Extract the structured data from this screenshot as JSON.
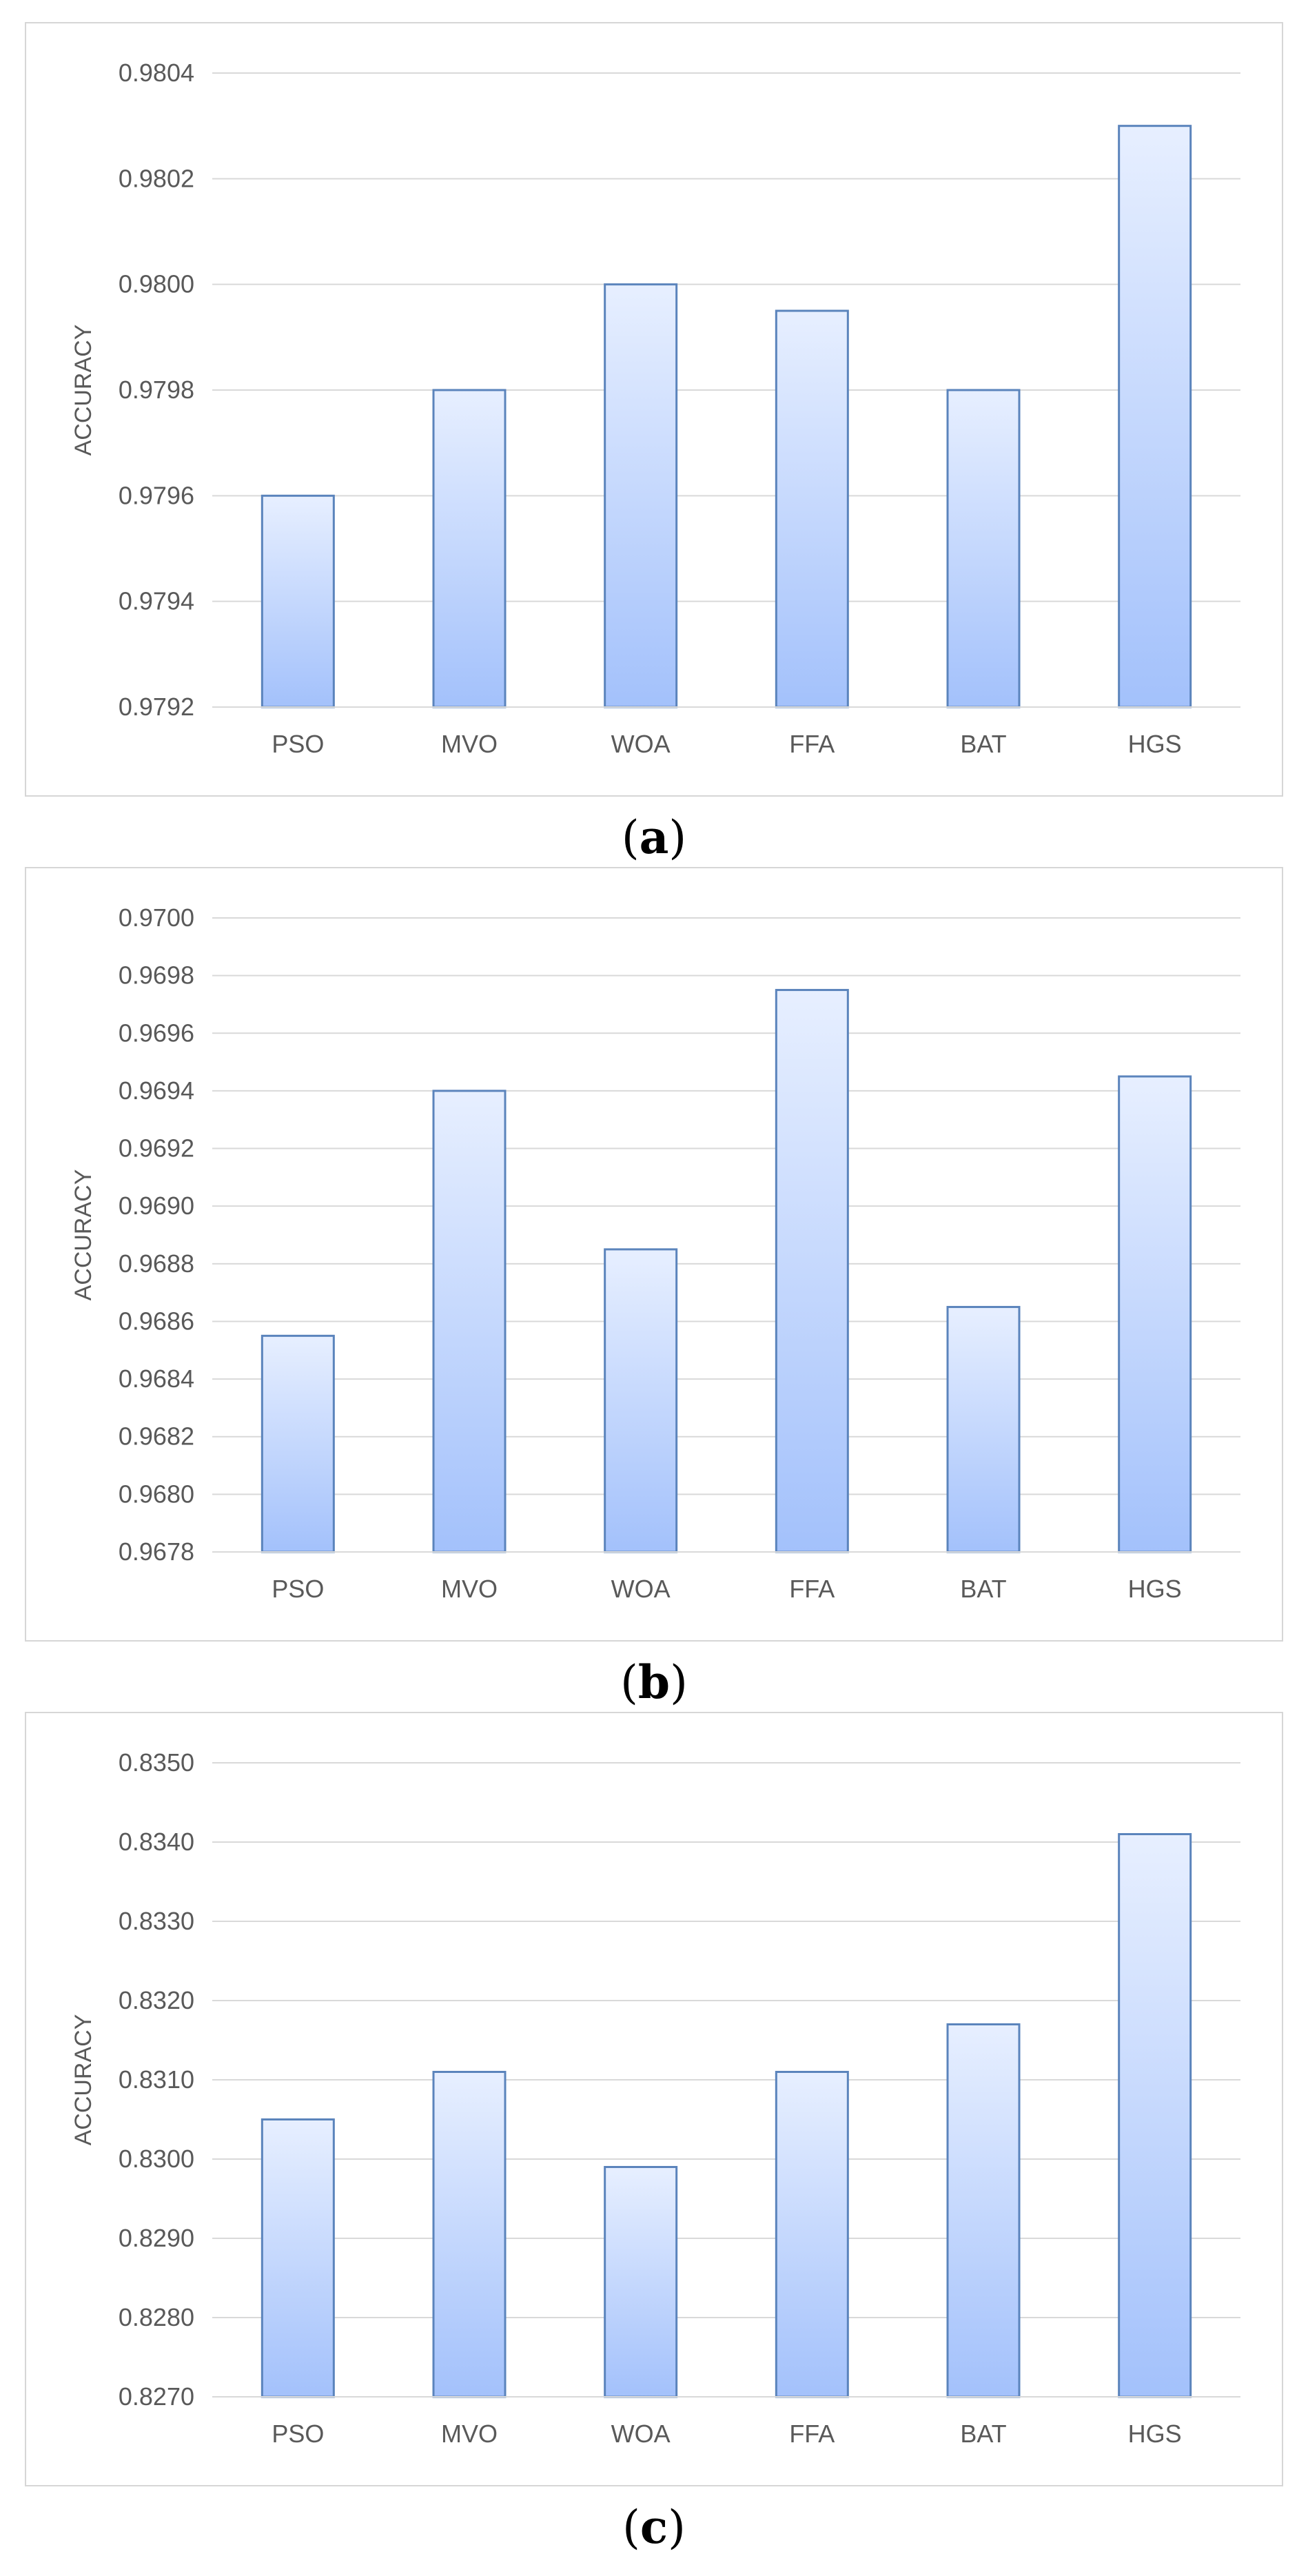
{
  "colors": {
    "bar_top": "#e7efff",
    "bar_bottom": "#a3c1fb",
    "bar_outline": "#5b84bc",
    "grid": "#d9d9d9",
    "tick_text": "#595959",
    "frame": "#d6d6d6"
  },
  "chart_data": [
    {
      "type": "bar",
      "caption_letter": "a",
      "categories": [
        "PSO",
        "MVO",
        "WOA",
        "FFA",
        "BAT",
        "HGS"
      ],
      "values": [
        0.9796,
        0.9798,
        0.98,
        0.97995,
        0.9798,
        0.9803
      ],
      "ylabel": "ACCURACY",
      "xlabel": "",
      "ylim": [
        0.9792,
        0.9804
      ],
      "yticks": [
        "0.9792",
        "0.9794",
        "0.9796",
        "0.9798",
        "0.9800",
        "0.9802",
        "0.9804"
      ],
      "grid": true
    },
    {
      "type": "bar",
      "caption_letter": "b",
      "categories": [
        "PSO",
        "MVO",
        "WOA",
        "FFA",
        "BAT",
        "HGS"
      ],
      "values": [
        0.96855,
        0.9694,
        0.96885,
        0.96975,
        0.96865,
        0.96945
      ],
      "ylabel": "ACCURACY",
      "xlabel": "",
      "ylim": [
        0.9678,
        0.97
      ],
      "yticks": [
        "0.9678",
        "0.9680",
        "0.9682",
        "0.9684",
        "0.9686",
        "0.9688",
        "0.9690",
        "0.9692",
        "0.9694",
        "0.9696",
        "0.9698",
        "0.9700"
      ],
      "grid": true
    },
    {
      "type": "bar",
      "caption_letter": "c",
      "categories": [
        "PSO",
        "MVO",
        "WOA",
        "FFA",
        "BAT",
        "HGS"
      ],
      "values": [
        0.8305,
        0.8311,
        0.8299,
        0.8311,
        0.8317,
        0.8341
      ],
      "ylabel": "ACCURACY",
      "xlabel": "",
      "ylim": [
        0.827,
        0.835
      ],
      "yticks": [
        "0.8270",
        "0.8280",
        "0.8290",
        "0.8300",
        "0.8310",
        "0.8320",
        "0.8330",
        "0.8340",
        "0.8350"
      ],
      "grid": true
    }
  ]
}
